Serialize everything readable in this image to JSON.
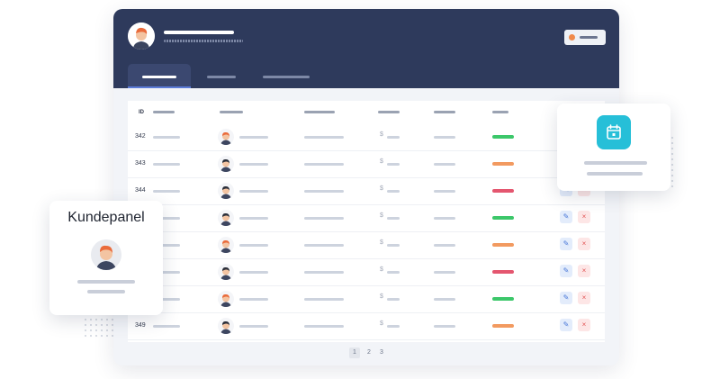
{
  "colors": {
    "header_bg": "#2e3a5c",
    "accent_tab": "#5b7bd8",
    "status_green": "#3cc76a",
    "status_orange": "#f29a60",
    "status_red": "#e4566f",
    "calendar_bg": "#26bfd8",
    "edit_bg": "#e3ecfb",
    "delete_bg": "#fde6e6"
  },
  "table": {
    "id_header": "ID",
    "currency_symbol": "$",
    "rows": [
      {
        "id": "342",
        "status": "green",
        "avatar": "orange-hair",
        "actions": false
      },
      {
        "id": "343",
        "status": "orange",
        "avatar": "dark-hair",
        "actions": false
      },
      {
        "id": "344",
        "status": "red",
        "avatar": "bun-hair",
        "actions": true
      },
      {
        "id": "",
        "status": "green",
        "avatar": "dark-hair",
        "actions": true
      },
      {
        "id": "",
        "status": "orange",
        "avatar": "orange-hair",
        "actions": true
      },
      {
        "id": "",
        "status": "red",
        "avatar": "beard",
        "actions": true
      },
      {
        "id": "",
        "status": "green",
        "avatar": "orange-hair",
        "actions": true
      },
      {
        "id": "349",
        "status": "orange",
        "avatar": "bun-hair",
        "actions": true
      }
    ]
  },
  "pagination": {
    "pages": [
      "1",
      "2",
      "3"
    ],
    "current": "1"
  },
  "customer_card": {
    "title": "Kundepanel",
    "icon": "user-avatar"
  },
  "calendar_card": {
    "icon": "calendar-icon"
  },
  "action_icons": {
    "edit": "✎",
    "delete": "×"
  }
}
